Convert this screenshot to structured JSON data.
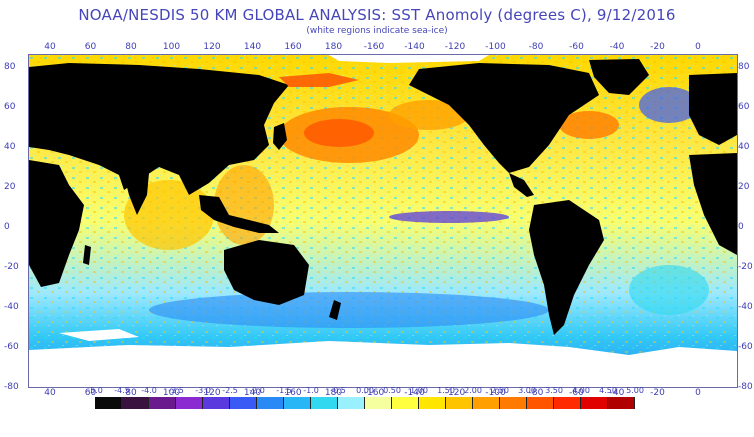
{
  "header": {
    "title": "NOAA/NESDIS 50 KM GLOBAL ANALYSIS: SST Anomoly (degrees C), 9/12/2016",
    "subtitle": "(white regions indicate sea-ice)"
  },
  "map": {
    "top_longitude_ticks": [
      "40",
      "60",
      "80",
      "100",
      "120",
      "140",
      "160",
      "180",
      "-160",
      "-140",
      "-120",
      "-100",
      "-80",
      "-60",
      "-40",
      "-20",
      "0"
    ],
    "bottom_longitude_ticks": [
      "40",
      "60",
      "80",
      "100",
      "120",
      "140",
      "160",
      "180",
      "-160",
      "-140",
      "-120",
      "-100",
      "-80",
      "-60",
      "-40",
      "-20",
      "0"
    ],
    "left_latitude_ticks": [
      "80",
      "60",
      "40",
      "20",
      "0",
      "-20",
      "-40",
      "-60",
      "-80"
    ],
    "right_latitude_ticks": [
      "80",
      "60",
      "40",
      "20",
      "0",
      "-20",
      "-40",
      "-60",
      "-80"
    ],
    "land_color": "#000000",
    "sea_ice_color": "#ffffff"
  },
  "colorbar": {
    "labels": [
      "-5.0",
      "-4.5",
      "-4.0",
      "-3.5",
      "-3.0",
      "-2.5",
      "-2.0",
      "-1.5",
      "-1.0",
      "-0.5",
      "0.00",
      "0.50",
      "1.00",
      "1.50",
      "2.00",
      "2.50",
      "3.00",
      "3.50",
      "4.00",
      "4.50",
      "5.00"
    ],
    "colors": [
      "#0a0a0a",
      "#3a1240",
      "#6a1a8c",
      "#8a2ad0",
      "#5a3adf",
      "#3a5af5",
      "#2a8af5",
      "#29b6f6",
      "#31d8f0",
      "#9af0ff",
      "#f5ffa0",
      "#ffff40",
      "#ffe600",
      "#ffc400",
      "#ffa000",
      "#ff7a00",
      "#ff5500",
      "#ff2a00",
      "#e00000",
      "#b00000"
    ]
  }
}
